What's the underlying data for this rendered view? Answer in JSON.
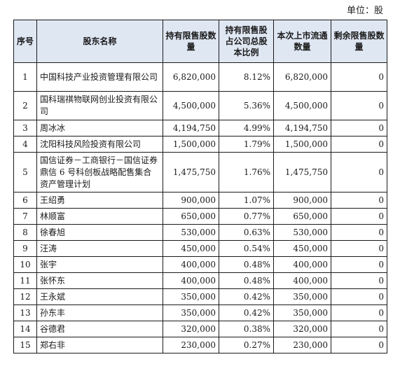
{
  "unit_label": "单位：股",
  "columns": {
    "no": "序号",
    "name": "股东名称",
    "restricted_shares": "持有限售股数量",
    "ratio": "持有限售股占公司总股本比例",
    "listed_shares": "本次上市流通数量",
    "remaining": "剩余限售股数量"
  },
  "rows": [
    {
      "no": "1",
      "name": "中国科技产业投资管理有限公司",
      "restricted_shares": "6,820,000",
      "ratio": "8.12%",
      "listed_shares": "6,820,000",
      "remaining": "0"
    },
    {
      "no": "2",
      "name": "国科瑞祺物联网创业投资有限公司",
      "restricted_shares": "4,500,000",
      "ratio": "5.36%",
      "listed_shares": "4,500,000",
      "remaining": "0"
    },
    {
      "no": "3",
      "name": "周冰冰",
      "restricted_shares": "4,194,750",
      "ratio": "4.99%",
      "listed_shares": "4,194,750",
      "remaining": "0"
    },
    {
      "no": "4",
      "name": "沈阳科技风险投资有限公司",
      "restricted_shares": "1,500,000",
      "ratio": "1.79%",
      "listed_shares": "1,500,000",
      "remaining": "0"
    },
    {
      "no": "5",
      "name": "国信证券－工商银行－国信证券鼎信 6 号科创板战略配售集合资产管理计划",
      "restricted_shares": "1,475,750",
      "ratio": "1.76%",
      "listed_shares": "1,475,750",
      "remaining": "0"
    },
    {
      "no": "6",
      "name": "王绍勇",
      "restricted_shares": "900,000",
      "ratio": "1.07%",
      "listed_shares": "900,000",
      "remaining": "0"
    },
    {
      "no": "7",
      "name": "林顺富",
      "restricted_shares": "650,000",
      "ratio": "0.77%",
      "listed_shares": "650,000",
      "remaining": "0"
    },
    {
      "no": "8",
      "name": "徐春旭",
      "restricted_shares": "530,000",
      "ratio": "0.63%",
      "listed_shares": "530,000",
      "remaining": "0"
    },
    {
      "no": "9",
      "name": "汪涛",
      "restricted_shares": "450,000",
      "ratio": "0.54%",
      "listed_shares": "450,000",
      "remaining": "0"
    },
    {
      "no": "10",
      "name": "张宇",
      "restricted_shares": "400,000",
      "ratio": "0.48%",
      "listed_shares": "400,000",
      "remaining": "0"
    },
    {
      "no": "11",
      "name": "张怀东",
      "restricted_shares": "400,000",
      "ratio": "0.48%",
      "listed_shares": "400,000",
      "remaining": "0"
    },
    {
      "no": "12",
      "name": "王永斌",
      "restricted_shares": "350,000",
      "ratio": "0.42%",
      "listed_shares": "350,000",
      "remaining": "0"
    },
    {
      "no": "13",
      "name": "孙东丰",
      "restricted_shares": "350,000",
      "ratio": "0.42%",
      "listed_shares": "350,000",
      "remaining": "0"
    },
    {
      "no": "14",
      "name": "谷德君",
      "restricted_shares": "320,000",
      "ratio": "0.38%",
      "listed_shares": "320,000",
      "remaining": "0"
    },
    {
      "no": "15",
      "name": "郑右非",
      "restricted_shares": "230,000",
      "ratio": "0.27%",
      "listed_shares": "230,000",
      "remaining": "0"
    }
  ]
}
